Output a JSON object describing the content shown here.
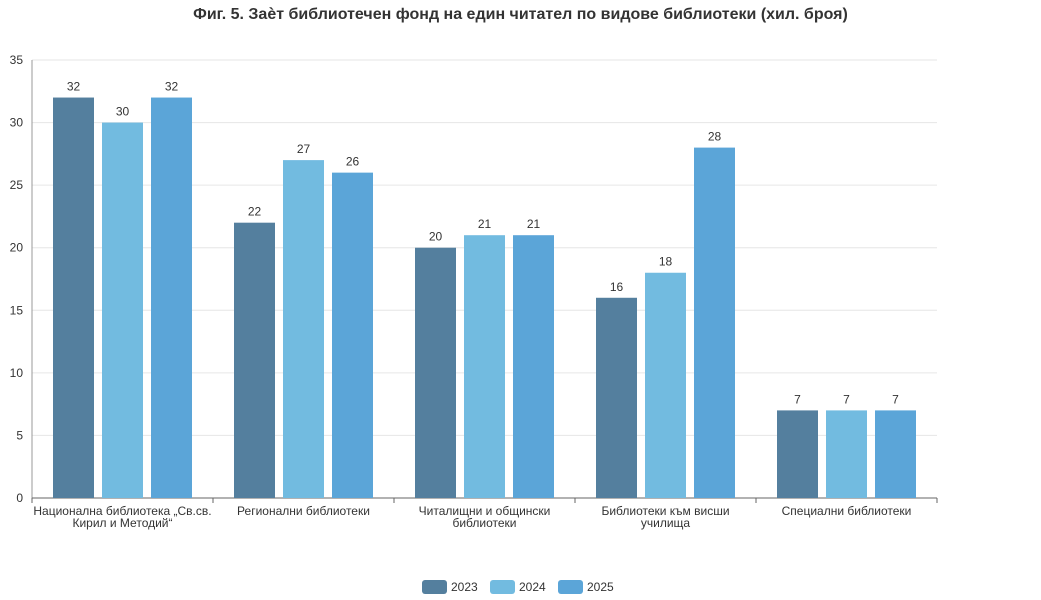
{
  "chart_data": {
    "type": "bar",
    "title": "Фиг. 5. Заѐт библиотечен фонд на един читател по видове библиотеки (хил. броя)",
    "categories": [
      [
        "Национална библиотека „Св.св.",
        "Кирил и Методий“"
      ],
      [
        "Регионални библиотеки"
      ],
      [
        "Читалищни и общински",
        "библиотеки"
      ],
      [
        "Библиотеки към висши",
        "училища"
      ],
      [
        "Специални библиотеки"
      ]
    ],
    "series": [
      {
        "name": "2023",
        "color": "#547f9e",
        "values": [
          32,
          22,
          20,
          16,
          7
        ]
      },
      {
        "name": "2024",
        "color": "#72bbe0",
        "values": [
          30,
          27,
          21,
          18,
          7
        ]
      },
      {
        "name": "2025",
        "color": "#5ba5d8",
        "values": [
          32,
          26,
          21,
          28,
          7
        ]
      }
    ],
    "ylim": [
      0,
      35
    ],
    "yticks": [
      0,
      5,
      10,
      15,
      20,
      25,
      30,
      35
    ],
    "grid": true,
    "legend_position": "bottom-center",
    "xlabel": "",
    "ylabel": ""
  }
}
